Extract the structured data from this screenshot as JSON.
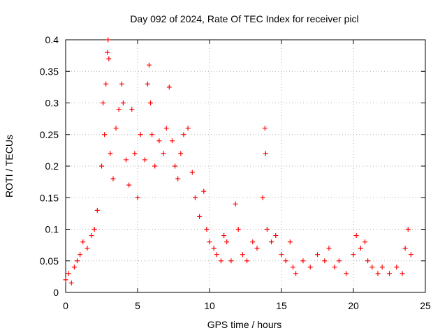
{
  "chart_data": {
    "type": "scatter",
    "title": "Day 092 of 2024, Rate Of TEC Index for receiver picl",
    "xlabel": "GPS time / hours",
    "ylabel": "ROTI / TECUs",
    "xlim": [
      0,
      25
    ],
    "ylim": [
      0,
      0.4
    ],
    "grid": true,
    "x_ticks": [
      0,
      5,
      10,
      15,
      20,
      25
    ],
    "x_tick_labels": [
      "0",
      "5",
      "10",
      "15",
      "20",
      "25"
    ],
    "y_ticks": [
      0,
      0.05,
      0.1,
      0.15,
      0.2,
      0.25,
      0.3,
      0.35,
      0.4
    ],
    "y_tick_labels": [
      "0",
      "0.05",
      "0.1",
      "0.15",
      "0.2",
      "0.25",
      "0.3",
      "0.35",
      "0.4"
    ],
    "marker": "+",
    "marker_color": "#ff0000",
    "series": [
      {
        "name": "ROTI",
        "points": [
          [
            0.0,
            0.02
          ],
          [
            0.2,
            0.03
          ],
          [
            0.4,
            0.015
          ],
          [
            0.6,
            0.04
          ],
          [
            0.8,
            0.05
          ],
          [
            1.0,
            0.06
          ],
          [
            1.2,
            0.08
          ],
          [
            1.5,
            0.07
          ],
          [
            1.8,
            0.09
          ],
          [
            2.0,
            0.1
          ],
          [
            2.2,
            0.13
          ],
          [
            2.5,
            0.2
          ],
          [
            2.6,
            0.3
          ],
          [
            2.7,
            0.25
          ],
          [
            2.8,
            0.33
          ],
          [
            2.9,
            0.38
          ],
          [
            2.95,
            0.4
          ],
          [
            3.0,
            0.37
          ],
          [
            3.1,
            0.22
          ],
          [
            3.3,
            0.18
          ],
          [
            3.5,
            0.26
          ],
          [
            3.7,
            0.29
          ],
          [
            3.9,
            0.33
          ],
          [
            4.0,
            0.3
          ],
          [
            4.2,
            0.21
          ],
          [
            4.4,
            0.17
          ],
          [
            4.6,
            0.29
          ],
          [
            4.8,
            0.22
          ],
          [
            5.0,
            0.15
          ],
          [
            5.2,
            0.25
          ],
          [
            5.5,
            0.21
          ],
          [
            5.7,
            0.33
          ],
          [
            5.8,
            0.36
          ],
          [
            5.9,
            0.3
          ],
          [
            6.0,
            0.25
          ],
          [
            6.2,
            0.2
          ],
          [
            6.5,
            0.24
          ],
          [
            6.8,
            0.22
          ],
          [
            7.0,
            0.26
          ],
          [
            7.2,
            0.325
          ],
          [
            7.4,
            0.24
          ],
          [
            7.6,
            0.2
          ],
          [
            7.8,
            0.18
          ],
          [
            8.0,
            0.22
          ],
          [
            8.2,
            0.25
          ],
          [
            8.5,
            0.26
          ],
          [
            8.8,
            0.19
          ],
          [
            9.0,
            0.15
          ],
          [
            9.3,
            0.12
          ],
          [
            9.6,
            0.16
          ],
          [
            9.8,
            0.1
          ],
          [
            10.0,
            0.08
          ],
          [
            10.3,
            0.07
          ],
          [
            10.5,
            0.06
          ],
          [
            10.8,
            0.05
          ],
          [
            11.0,
            0.09
          ],
          [
            11.2,
            0.08
          ],
          [
            11.5,
            0.05
          ],
          [
            11.8,
            0.14
          ],
          [
            12.0,
            0.1
          ],
          [
            12.3,
            0.06
          ],
          [
            12.6,
            0.05
          ],
          [
            13.0,
            0.08
          ],
          [
            13.3,
            0.07
          ],
          [
            13.7,
            0.15
          ],
          [
            13.85,
            0.26
          ],
          [
            13.9,
            0.22
          ],
          [
            14.0,
            0.1
          ],
          [
            14.3,
            0.08
          ],
          [
            14.6,
            0.09
          ],
          [
            15.0,
            0.06
          ],
          [
            15.3,
            0.05
          ],
          [
            15.6,
            0.08
          ],
          [
            15.8,
            0.04
          ],
          [
            16.0,
            0.03
          ],
          [
            16.5,
            0.05
          ],
          [
            17.0,
            0.04
          ],
          [
            17.5,
            0.06
          ],
          [
            18.0,
            0.05
          ],
          [
            18.3,
            0.07
          ],
          [
            18.7,
            0.04
          ],
          [
            19.0,
            0.05
          ],
          [
            19.5,
            0.03
          ],
          [
            20.0,
            0.06
          ],
          [
            20.2,
            0.09
          ],
          [
            20.5,
            0.07
          ],
          [
            20.8,
            0.08
          ],
          [
            21.0,
            0.05
          ],
          [
            21.3,
            0.04
          ],
          [
            21.7,
            0.03
          ],
          [
            22.0,
            0.04
          ],
          [
            22.5,
            0.03
          ],
          [
            23.0,
            0.04
          ],
          [
            23.4,
            0.03
          ],
          [
            23.6,
            0.07
          ],
          [
            23.8,
            0.1
          ],
          [
            24.0,
            0.06
          ]
        ]
      }
    ]
  }
}
